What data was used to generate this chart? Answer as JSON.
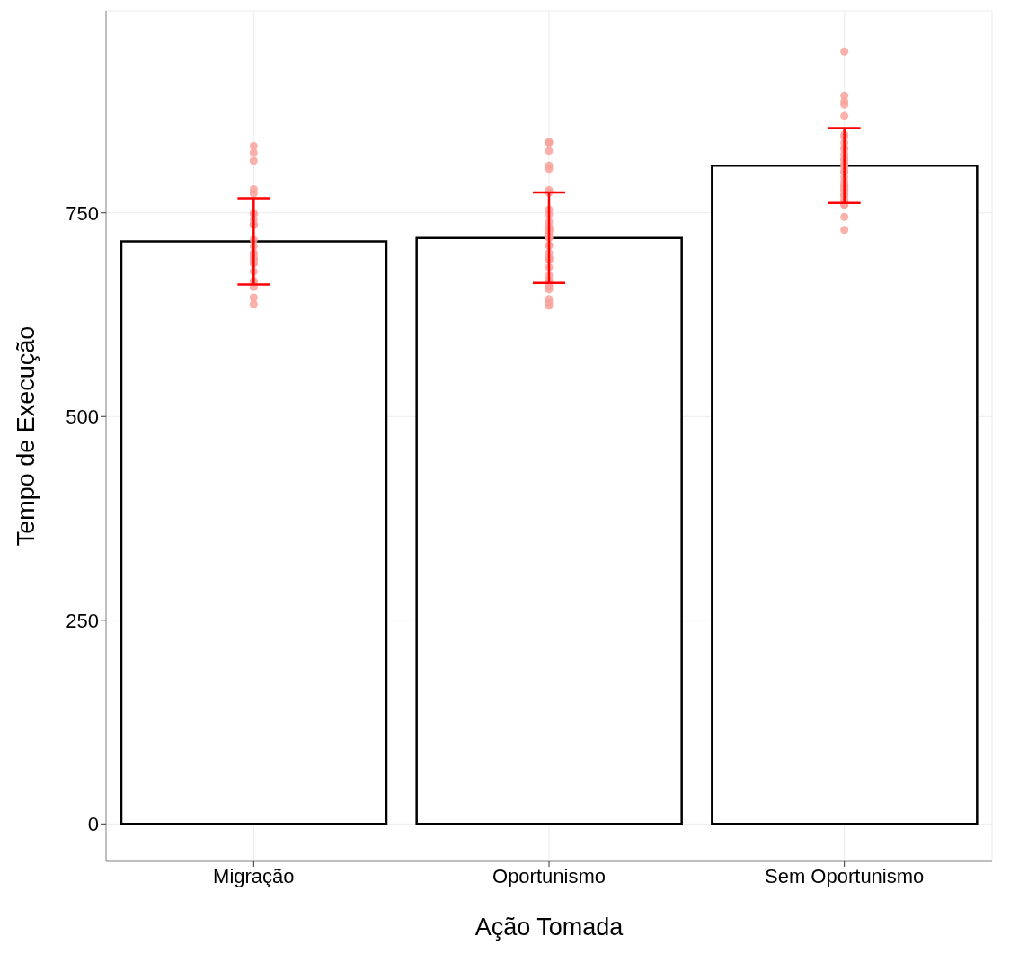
{
  "chart_data": {
    "type": "bar",
    "xlabel": "Ação Tomada",
    "ylabel": "Tempo de Execução",
    "categories": [
      "Migração",
      "Oportunismo",
      "Sem Oportunismo"
    ],
    "ylim": [
      -46,
      998
    ],
    "yticks": [
      0,
      250,
      500,
      750
    ],
    "grid": true,
    "series": [
      {
        "color": "#ffffff",
        "values": [
          715,
          719,
          808
        ],
        "errors": [
          [
            662,
            768
          ],
          [
            664,
            775
          ],
          [
            762,
            854
          ]
        ]
      },
      {
        "type": "scatter",
        "color": "#f8a39c",
        "x": [
          "Migração",
          "Migração",
          "Migração",
          "Migração",
          "Migração",
          "Migração",
          "Migração",
          "Migração",
          "Migração",
          "Migração",
          "Migração",
          "Migração",
          "Migração",
          "Migração",
          "Migração",
          "Migração",
          "Migração",
          "Migração",
          "Migração",
          "Migração",
          "Migração",
          "Migração",
          "Migração",
          "Migração",
          "Migração",
          "Migração",
          "Oportunismo",
          "Oportunismo",
          "Oportunismo",
          "Oportunismo",
          "Oportunismo",
          "Oportunismo",
          "Oportunismo",
          "Oportunismo",
          "Oportunismo",
          "Oportunismo",
          "Oportunismo",
          "Oportunismo",
          "Oportunismo",
          "Oportunismo",
          "Oportunismo",
          "Oportunismo",
          "Oportunismo",
          "Oportunismo",
          "Oportunismo",
          "Oportunismo",
          "Oportunismo",
          "Oportunismo",
          "Oportunismo",
          "Oportunismo",
          "Oportunismo",
          "Oportunismo",
          "Oportunismo",
          "Oportunismo",
          "Oportunismo",
          "Oportunismo",
          "Oportunismo",
          "Oportunismo",
          "Oportunismo",
          "Oportunismo",
          "Oportunismo",
          "Sem Oportunismo",
          "Sem Oportunismo",
          "Sem Oportunismo",
          "Sem Oportunismo",
          "Sem Oportunismo",
          "Sem Oportunismo",
          "Sem Oportunismo",
          "Sem Oportunismo",
          "Sem Oportunismo",
          "Sem Oportunismo",
          "Sem Oportunismo",
          "Sem Oportunismo",
          "Sem Oportunismo",
          "Sem Oportunismo",
          "Sem Oportunismo",
          "Sem Oportunismo",
          "Sem Oportunismo",
          "Sem Oportunismo",
          "Sem Oportunismo",
          "Sem Oportunismo",
          "Sem Oportunismo",
          "Sem Oportunismo",
          "Sem Oportunismo",
          "Sem Oportunismo",
          "Sem Oportunismo",
          "Sem Oportunismo",
          "Sem Oportunismo",
          "Sem Oportunismo",
          "Sem Oportunismo",
          "Sem Oportunismo",
          "Sem Oportunismo",
          "Sem Oportunismo",
          "Sem Oportunismo",
          "Sem Oportunismo"
        ],
        "values": [
          824,
          814,
          717,
          709,
          666,
          646,
          736,
          699,
          779,
          832,
          749,
          735,
          692,
          694,
          688,
          688,
          666,
          638,
          701,
          749,
          742,
          735,
          659,
          678,
          694,
          774,
          837,
          778,
          701,
          693,
          729,
          724,
          733,
          720,
          695,
          683,
          656,
          636,
          727,
          731,
          739,
          775,
          808,
          826,
          804,
          836,
          748,
          754,
          694,
          659,
          644,
          662,
          640,
          666,
          673,
          667,
          710,
          692,
          710,
          729,
          719,
          836,
          828,
          811,
          815,
          785,
          778,
          846,
          781,
          772,
          770,
          760,
          773,
          778,
          822,
          729,
          806,
          809,
          783,
          830,
          887,
          883,
          894,
          869,
          843,
          800,
          789,
          766,
          745,
          948,
          817,
          765,
          760,
          801,
          794
        ]
      }
    ]
  }
}
